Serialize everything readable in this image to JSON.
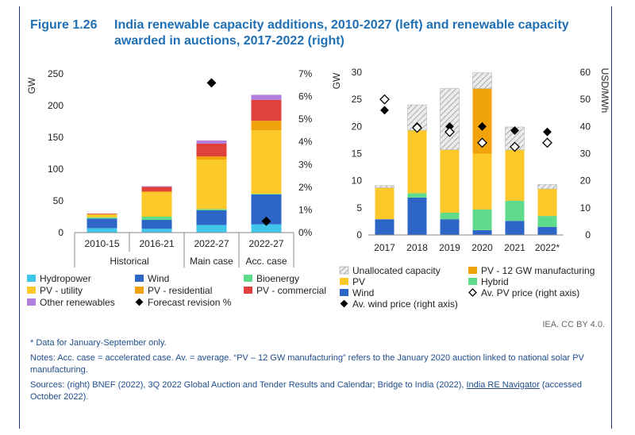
{
  "figure": {
    "number": "Figure 1.26",
    "title": "India renewable capacity additions, 2010-2027 (left) and renewable capacity awarded in auctions, 2017-2022 (right)"
  },
  "colors": {
    "hydropower": "#3fc6ea",
    "wind": "#2e66c8",
    "bioenergy": "#5fdc8b",
    "pv_utility": "#fcc82a",
    "pv_residential": "#f0a30a",
    "pv_commercial": "#e0413d",
    "other": "#b07fe0",
    "unallocated": "#d9d9d9",
    "pv_manufacturing": "#f0a30a",
    "pv": "#fcc82a",
    "hybrid": "#5fdc8b",
    "text": "#1f4e8c"
  },
  "chart_data": [
    {
      "type": "bar",
      "stacked": true,
      "categories": [
        "2010-15",
        "2016-21",
        "2022-27",
        "2022-27"
      ],
      "groups": [
        {
          "label": "Historical",
          "span": 2
        },
        {
          "label": "Main case",
          "span": 1
        },
        {
          "label": "Acc. case",
          "span": 1
        }
      ],
      "ylabel": "GW",
      "ylim": [
        0,
        250
      ],
      "yticks": [
        "0",
        "50",
        "100",
        "150",
        "200",
        "250"
      ],
      "y2lim": [
        0,
        7
      ],
      "y2ticks": [
        "0%",
        "1%",
        "2%",
        "3%",
        "4%",
        "5%",
        "6%",
        "7%"
      ],
      "series": [
        {
          "name": "Hydropower",
          "key": "hydropower",
          "values": [
            7,
            6,
            12,
            13
          ]
        },
        {
          "name": "Wind",
          "key": "wind",
          "values": [
            15,
            14,
            23,
            47
          ]
        },
        {
          "name": "Bioenergy",
          "key": "bioenergy",
          "values": [
            2,
            5,
            2,
            1
          ]
        },
        {
          "name": "PV - utility",
          "key": "pv_utility",
          "values": [
            5,
            38,
            78,
            100
          ]
        },
        {
          "name": "PV - residential",
          "key": "pv_residential",
          "values": [
            0,
            2,
            5,
            15
          ]
        },
        {
          "name": "PV - commercial",
          "key": "pv_commercial",
          "values": [
            1,
            7,
            20,
            33
          ]
        },
        {
          "name": "Other renewables",
          "key": "other",
          "values": [
            0,
            1,
            5,
            8
          ]
        }
      ],
      "forecast_revision_pct": [
        null,
        null,
        6.6,
        0.5
      ],
      "legend": {
        "items": [
          {
            "label": "Hydropower",
            "key": "hydropower",
            "marker": "box"
          },
          {
            "label": "Wind",
            "key": "wind",
            "marker": "box"
          },
          {
            "label": "Bioenergy",
            "key": "bioenergy",
            "marker": "box"
          },
          {
            "label": "PV - utility",
            "key": "pv_utility",
            "marker": "box"
          },
          {
            "label": "PV - residential",
            "key": "pv_residential",
            "marker": "box"
          },
          {
            "label": "PV - commercial",
            "key": "pv_commercial",
            "marker": "box"
          },
          {
            "label": "Other renewables",
            "key": "other",
            "marker": "box"
          },
          {
            "label": "Forecast revision %",
            "key": "revision",
            "marker": "diamond"
          }
        ]
      }
    },
    {
      "type": "bar",
      "stacked": true,
      "categories": [
        "2017",
        "2018",
        "2019",
        "2020",
        "2021",
        "2022*"
      ],
      "ylabel": "GW",
      "ylim": [
        0,
        30
      ],
      "yticks": [
        "0",
        "5",
        "10",
        "15",
        "20",
        "25",
        "30"
      ],
      "y2label": "USD/MWh",
      "y2lim": [
        0,
        60
      ],
      "y2ticks": [
        "0",
        "10",
        "20",
        "30",
        "40",
        "50",
        "60"
      ],
      "series": [
        {
          "name": "Wind",
          "key": "wind",
          "values": [
            2.9,
            6.9,
            2.9,
            0.9,
            2.6,
            1.5
          ]
        },
        {
          "name": "Hybrid",
          "key": "hybrid",
          "values": [
            0,
            0.8,
            1.2,
            3.8,
            3.7,
            2.0
          ]
        },
        {
          "name": "PV",
          "key": "pv",
          "values": [
            5.8,
            11.6,
            11.6,
            10.3,
            9.4,
            5.0
          ]
        },
        {
          "name": "PV - 12 GW manufacturing",
          "key": "pv_manufacturing",
          "values": [
            0,
            0,
            0,
            12.0,
            0,
            0
          ]
        },
        {
          "name": "Unallocated capacity",
          "key": "unallocated",
          "values": [
            0.4,
            4.7,
            11.3,
            2.9,
            4.2,
            0.8
          ]
        }
      ],
      "wind_price": [
        46,
        40,
        40,
        40,
        38.5,
        38
      ],
      "pv_price": [
        50,
        39.5,
        38,
        34,
        32.5,
        34
      ],
      "legend": {
        "items": [
          {
            "label": "Unallocated capacity",
            "key": "unallocated",
            "marker": "hatch"
          },
          {
            "label": "PV - 12 GW manufacturing",
            "key": "pv_manufacturing",
            "marker": "box"
          },
          {
            "label": "PV",
            "key": "pv",
            "marker": "box"
          },
          {
            "label": "Hybrid",
            "key": "hybrid",
            "marker": "box"
          },
          {
            "label": "Wind",
            "key": "wind",
            "marker": "box"
          },
          {
            "label": "Av. PV price (right axis)",
            "key": "pv_price",
            "marker": "open-diamond"
          },
          {
            "label": "Av. wind price (right axis)",
            "key": "wind_price",
            "marker": "diamond"
          }
        ]
      }
    }
  ],
  "attribution": "IEA. CC BY 4.0.",
  "notes": {
    "footnote": "* Data for January-September only.",
    "notes_text": "Notes: Acc. case = accelerated case. Av. = average. “PV – 12 GW manufacturing” refers to the January 2020 auction linked to national solar PV manufacturing.",
    "sources_prefix": "Sources: (right) BNEF (2022), 3Q 2022 Global Auction and Tender Results and Calendar; Bridge to India (2022), ",
    "sources_link": "India RE Navigator",
    "sources_suffix": " (accessed October 2022)."
  }
}
